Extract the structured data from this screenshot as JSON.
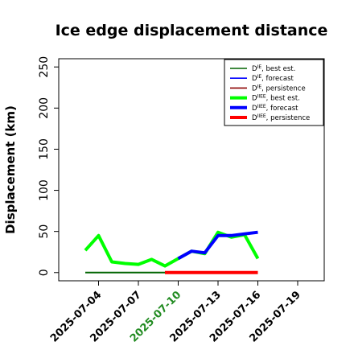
{
  "chart_data": {
    "type": "line",
    "title": "Ice edge displacement distance",
    "ylabel": "Displacement (km)",
    "xlabel": "",
    "ylim": [
      0,
      260
    ],
    "yticks": [
      0,
      50,
      100,
      150,
      200,
      250
    ],
    "xlim": [
      "2025-07-01",
      "2025-07-21"
    ],
    "xticks": [
      "2025-07-04",
      "2025-07-07",
      "2025-07-10",
      "2025-07-13",
      "2025-07-16",
      "2025-07-19"
    ],
    "highlight_tick": "2025-07-10",
    "highlight_color": "#228B22",
    "grid": false,
    "legend_position": "top-right",
    "series": [
      {
        "name": "D_IE, best est.",
        "legend_base": "D",
        "legend_sup": "IE",
        "legend_suffix": ", best est.",
        "color": "#006400",
        "thick": false,
        "x": [
          "2025-07-03",
          "2025-07-04",
          "2025-07-05",
          "2025-07-06",
          "2025-07-07",
          "2025-07-08",
          "2025-07-09"
        ],
        "y": [
          0,
          0,
          0,
          0,
          0,
          0,
          0
        ]
      },
      {
        "name": "D_IE, forecast",
        "legend_base": "D",
        "legend_sup": "IE",
        "legend_suffix": ", forecast",
        "color": "#0000FF",
        "thick": false,
        "x": [],
        "y": []
      },
      {
        "name": "D_IE, persistence",
        "legend_base": "D",
        "legend_sup": "IE",
        "legend_suffix": ", persistence",
        "color": "#8B0000",
        "thick": false,
        "x": [],
        "y": []
      },
      {
        "name": "D_IIEE, best est.",
        "legend_base": "D",
        "legend_sup": "IIEE",
        "legend_suffix": ", best est.",
        "color": "#00FF00",
        "thick": true,
        "x": [
          "2025-07-03",
          "2025-07-04",
          "2025-07-05",
          "2025-07-06",
          "2025-07-07",
          "2025-07-08",
          "2025-07-09",
          "2025-07-10",
          "2025-07-11",
          "2025-07-12",
          "2025-07-13",
          "2025-07-14",
          "2025-07-15",
          "2025-07-16"
        ],
        "y": [
          27,
          45,
          13,
          11,
          10,
          16,
          8,
          17,
          26,
          23,
          49,
          43,
          46,
          17
        ]
      },
      {
        "name": "D_IIEE, forecast",
        "legend_base": "D",
        "legend_sup": "IIEE",
        "legend_suffix": ", forecast",
        "color": "#0000FF",
        "thick": true,
        "x": [
          "2025-07-10",
          "2025-07-11",
          "2025-07-12",
          "2025-07-13",
          "2025-07-14",
          "2025-07-15",
          "2025-07-16"
        ],
        "y": [
          17,
          26,
          24,
          45,
          45,
          47,
          49
        ]
      },
      {
        "name": "D_IIEE, persistence",
        "legend_base": "D",
        "legend_sup": "IIEE",
        "legend_suffix": ", persistence",
        "color": "#FF0000",
        "thick": true,
        "x": [
          "2025-07-09",
          "2025-07-10",
          "2025-07-11",
          "2025-07-12",
          "2025-07-13",
          "2025-07-14",
          "2025-07-15",
          "2025-07-16"
        ],
        "y": [
          0,
          0,
          0,
          0,
          0,
          0,
          0,
          0
        ]
      }
    ]
  }
}
